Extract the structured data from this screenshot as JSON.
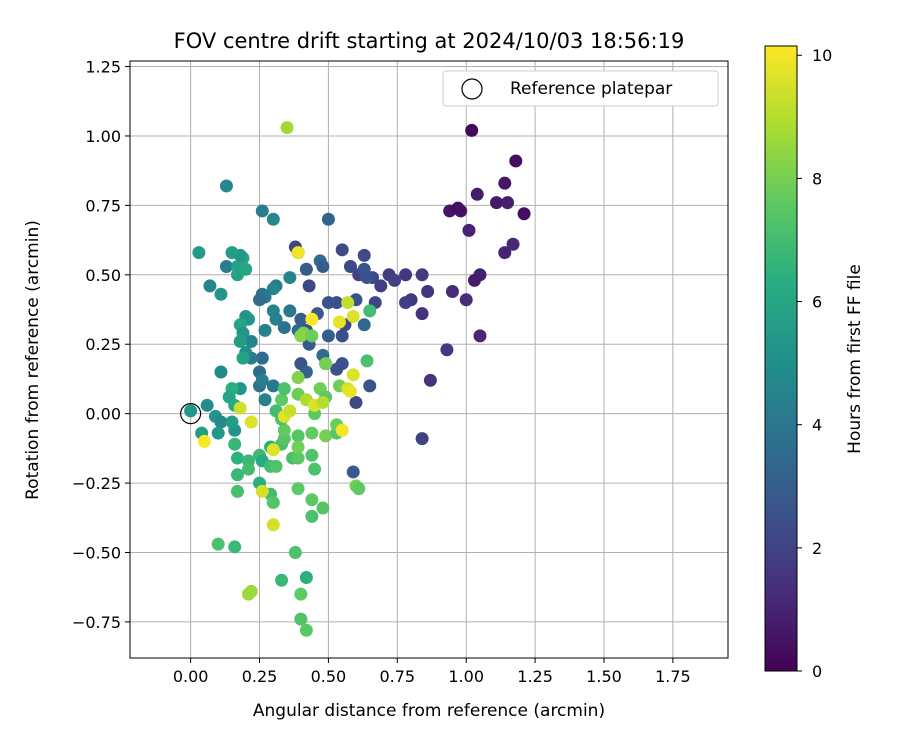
{
  "chart_data": {
    "type": "scatter",
    "title": "FOV centre drift starting at 2024/10/03 18:56:19",
    "xlabel": "Angular distance from reference (arcmin)",
    "ylabel": "Rotation from reference (arcmin)",
    "xlim": [
      -0.22,
      1.95
    ],
    "ylim": [
      -0.88,
      1.27
    ],
    "xticks": [
      "0.00",
      "0.25",
      "0.50",
      "0.75",
      "1.00",
      "1.25",
      "1.50",
      "1.75"
    ],
    "yticks": [
      "-0.75",
      "-0.50",
      "-0.25",
      "0.00",
      "0.25",
      "0.50",
      "0.75",
      "1.00",
      "1.25"
    ],
    "grid": true,
    "legend": {
      "placement": "top-right",
      "label": "Reference platepar"
    },
    "reference_point": {
      "x": 0.0,
      "y": 0.0
    },
    "colorbar": {
      "label": "Hours from first FF file",
      "range": [
        0,
        10.15
      ],
      "ticks": [
        "0",
        "2",
        "4",
        "6",
        "8",
        "10"
      ],
      "colormap": "viridis"
    },
    "series": [
      {
        "points": [
          {
            "x": 1.02,
            "y": 1.02,
            "c": 0.2
          },
          {
            "x": 1.18,
            "y": 0.91,
            "c": 0.4
          },
          {
            "x": 1.14,
            "y": 0.83,
            "c": 0.6
          },
          {
            "x": 1.21,
            "y": 0.72,
            "c": 0.4
          },
          {
            "x": 1.04,
            "y": 0.79,
            "c": 0.8
          },
          {
            "x": 1.11,
            "y": 0.76,
            "c": 0.7
          },
          {
            "x": 1.15,
            "y": 0.76,
            "c": 0.9
          },
          {
            "x": 0.94,
            "y": 0.73,
            "c": 0.6
          },
          {
            "x": 0.97,
            "y": 0.74,
            "c": 0.3
          },
          {
            "x": 0.98,
            "y": 0.73,
            "c": 0.5
          },
          {
            "x": 1.01,
            "y": 0.66,
            "c": 1.0
          },
          {
            "x": 1.17,
            "y": 0.61,
            "c": 1.1
          },
          {
            "x": 1.14,
            "y": 0.58,
            "c": 1.0
          },
          {
            "x": 1.05,
            "y": 0.5,
            "c": 0.9
          },
          {
            "x": 1.03,
            "y": 0.48,
            "c": 0.8
          },
          {
            "x": 0.95,
            "y": 0.44,
            "c": 1.2
          },
          {
            "x": 1.0,
            "y": 0.41,
            "c": 1.3
          },
          {
            "x": 1.05,
            "y": 0.28,
            "c": 1.1
          },
          {
            "x": 0.93,
            "y": 0.23,
            "c": 1.6
          },
          {
            "x": 0.87,
            "y": 0.12,
            "c": 1.4
          },
          {
            "x": 0.84,
            "y": -0.09,
            "c": 2.0
          },
          {
            "x": 0.84,
            "y": 0.5,
            "c": 1.7
          },
          {
            "x": 0.86,
            "y": 0.44,
            "c": 1.5
          },
          {
            "x": 0.84,
            "y": 0.36,
            "c": 1.4
          },
          {
            "x": 0.8,
            "y": 0.41,
            "c": 1.6
          },
          {
            "x": 0.78,
            "y": 0.4,
            "c": 1.9
          },
          {
            "x": 0.78,
            "y": 0.5,
            "c": 1.6
          },
          {
            "x": 0.72,
            "y": 0.5,
            "c": 1.8
          },
          {
            "x": 0.74,
            "y": 0.48,
            "c": 2.0
          },
          {
            "x": 0.69,
            "y": 0.46,
            "c": 1.9
          },
          {
            "x": 0.67,
            "y": 0.4,
            "c": 2.1
          },
          {
            "x": 0.66,
            "y": 0.49,
            "c": 2.2
          },
          {
            "x": 0.61,
            "y": 0.5,
            "c": 2.0
          },
          {
            "x": 0.58,
            "y": 0.53,
            "c": 2.2
          },
          {
            "x": 0.63,
            "y": 0.57,
            "c": 2.3
          },
          {
            "x": 0.55,
            "y": 0.59,
            "c": 2.3
          },
          {
            "x": 0.63,
            "y": 0.52,
            "c": 2.7
          },
          {
            "x": 0.64,
            "y": 0.49,
            "c": 2.5
          },
          {
            "x": 0.6,
            "y": 0.41,
            "c": 2.6
          },
          {
            "x": 0.53,
            "y": 0.4,
            "c": 2.4
          },
          {
            "x": 0.5,
            "y": 0.4,
            "c": 2.6
          },
          {
            "x": 0.46,
            "y": 0.36,
            "c": 2.8
          },
          {
            "x": 0.5,
            "y": 0.28,
            "c": 3.0
          },
          {
            "x": 0.55,
            "y": 0.28,
            "c": 2.4
          },
          {
            "x": 0.56,
            "y": 0.32,
            "c": 2.2
          },
          {
            "x": 0.63,
            "y": 0.32,
            "c": 3.4
          },
          {
            "x": 0.65,
            "y": 0.1,
            "c": 2.6
          },
          {
            "x": 0.6,
            "y": 0.04,
            "c": 2.2
          },
          {
            "x": 0.59,
            "y": -0.21,
            "c": 2.8
          },
          {
            "x": 0.55,
            "y": 0.18,
            "c": 2.5
          },
          {
            "x": 0.53,
            "y": 0.16,
            "c": 2.6
          },
          {
            "x": 0.5,
            "y": 0.7,
            "c": 3.3
          },
          {
            "x": 0.47,
            "y": 0.55,
            "c": 3.6
          },
          {
            "x": 0.48,
            "y": 0.53,
            "c": 3.0
          },
          {
            "x": 0.42,
            "y": 0.52,
            "c": 2.9
          },
          {
            "x": 0.38,
            "y": 0.6,
            "c": 2.1
          },
          {
            "x": 0.39,
            "y": 0.58,
            "c": 2.4
          },
          {
            "x": 0.43,
            "y": 0.46,
            "c": 2.2
          },
          {
            "x": 0.4,
            "y": 0.34,
            "c": 3.0
          },
          {
            "x": 0.42,
            "y": 0.3,
            "c": 2.6
          },
          {
            "x": 0.43,
            "y": 0.25,
            "c": 2.8
          },
          {
            "x": 0.39,
            "y": 0.3,
            "c": 3.4
          },
          {
            "x": 0.4,
            "y": 0.18,
            "c": 2.6
          },
          {
            "x": 0.42,
            "y": 0.15,
            "c": 3.2
          },
          {
            "x": 0.48,
            "y": 0.21,
            "c": 3.6
          },
          {
            "x": 0.49,
            "y": 0.18,
            "c": 3.0
          },
          {
            "x": 0.36,
            "y": 0.49,
            "c": 4.5
          },
          {
            "x": 0.31,
            "y": 0.46,
            "c": 4.3
          },
          {
            "x": 0.3,
            "y": 0.45,
            "c": 4.6
          },
          {
            "x": 0.26,
            "y": 0.73,
            "c": 4.2
          },
          {
            "x": 0.3,
            "y": 0.7,
            "c": 4.7
          },
          {
            "x": 0.26,
            "y": 0.43,
            "c": 3.8
          },
          {
            "x": 0.27,
            "y": 0.42,
            "c": 4.1
          },
          {
            "x": 0.25,
            "y": 0.41,
            "c": 3.6
          },
          {
            "x": 0.3,
            "y": 0.37,
            "c": 4.6
          },
          {
            "x": 0.36,
            "y": 0.37,
            "c": 4.0
          },
          {
            "x": 0.34,
            "y": 0.31,
            "c": 3.8
          },
          {
            "x": 0.31,
            "y": 0.34,
            "c": 4.4
          },
          {
            "x": 0.27,
            "y": 0.3,
            "c": 4.5
          },
          {
            "x": 0.26,
            "y": 0.2,
            "c": 3.6
          },
          {
            "x": 0.25,
            "y": 0.15,
            "c": 3.5
          },
          {
            "x": 0.25,
            "y": 0.1,
            "c": 3.8
          },
          {
            "x": 0.26,
            "y": 0.12,
            "c": 4.2
          },
          {
            "x": 0.3,
            "y": 0.1,
            "c": 4.1
          },
          {
            "x": 0.27,
            "y": 0.05,
            "c": 4.4
          },
          {
            "x": 0.22,
            "y": 0.26,
            "c": 4.6
          },
          {
            "x": 0.22,
            "y": 0.2,
            "c": 4.2
          },
          {
            "x": 0.13,
            "y": 0.82,
            "c": 4.7
          },
          {
            "x": 0.13,
            "y": 0.53,
            "c": 4.2
          },
          {
            "x": 0.07,
            "y": 0.46,
            "c": 4.6
          },
          {
            "x": 0.11,
            "y": 0.43,
            "c": 5.4
          },
          {
            "x": 0.17,
            "y": 0.53,
            "c": 5.8
          },
          {
            "x": 0.19,
            "y": 0.56,
            "c": 5.9
          },
          {
            "x": 0.18,
            "y": 0.57,
            "c": 5.4
          },
          {
            "x": 0.15,
            "y": 0.58,
            "c": 5.6
          },
          {
            "x": 0.03,
            "y": 0.58,
            "c": 5.5
          },
          {
            "x": 0.17,
            "y": 0.5,
            "c": 5.8
          },
          {
            "x": 0.2,
            "y": 0.52,
            "c": 6.0
          },
          {
            "x": 0.2,
            "y": 0.35,
            "c": 5.2
          },
          {
            "x": 0.21,
            "y": 0.34,
            "c": 5.3
          },
          {
            "x": 0.18,
            "y": 0.32,
            "c": 5.9
          },
          {
            "x": 0.19,
            "y": 0.29,
            "c": 5.2
          },
          {
            "x": 0.18,
            "y": 0.26,
            "c": 5.6
          },
          {
            "x": 0.2,
            "y": 0.22,
            "c": 5.0
          },
          {
            "x": 0.19,
            "y": 0.2,
            "c": 5.8
          },
          {
            "x": 0.11,
            "y": 0.15,
            "c": 4.8
          },
          {
            "x": 0.18,
            "y": 0.09,
            "c": 5.3
          },
          {
            "x": 0.15,
            "y": 0.09,
            "c": 6.4
          },
          {
            "x": 0.14,
            "y": 0.06,
            "c": 5.9
          },
          {
            "x": 0.16,
            "y": 0.03,
            "c": 6.2
          },
          {
            "x": 0.06,
            "y": 0.03,
            "c": 4.9
          },
          {
            "x": 0.09,
            "y": -0.01,
            "c": 5.2
          },
          {
            "x": 0.11,
            "y": -0.03,
            "c": 4.8
          },
          {
            "x": 0.0,
            "y": 0.01,
            "c": 5.3
          },
          {
            "x": 0.04,
            "y": -0.07,
            "c": 5.6
          },
          {
            "x": 0.1,
            "y": -0.07,
            "c": 5.4
          },
          {
            "x": 0.16,
            "y": -0.06,
            "c": 5.2
          },
          {
            "x": 0.15,
            "y": -0.03,
            "c": 5.6
          },
          {
            "x": 0.16,
            "y": -0.11,
            "c": 6.7
          },
          {
            "x": 0.17,
            "y": -0.16,
            "c": 6.5
          },
          {
            "x": 0.21,
            "y": -0.17,
            "c": 6.8
          },
          {
            "x": 0.17,
            "y": -0.22,
            "c": 6.8
          },
          {
            "x": 0.21,
            "y": -0.2,
            "c": 7.0
          },
          {
            "x": 0.17,
            "y": -0.28,
            "c": 7.1
          },
          {
            "x": 0.25,
            "y": -0.15,
            "c": 6.9
          },
          {
            "x": 0.29,
            "y": -0.12,
            "c": 6.4
          },
          {
            "x": 0.26,
            "y": -0.17,
            "c": 6.2
          },
          {
            "x": 0.29,
            "y": -0.19,
            "c": 7.0
          },
          {
            "x": 0.31,
            "y": -0.19,
            "c": 7.3
          },
          {
            "x": 0.29,
            "y": -0.29,
            "c": 7.0
          },
          {
            "x": 0.3,
            "y": -0.32,
            "c": 7.4
          },
          {
            "x": 0.25,
            "y": -0.25,
            "c": 6.4
          },
          {
            "x": 0.1,
            "y": -0.47,
            "c": 7.2
          },
          {
            "x": 0.16,
            "y": -0.48,
            "c": 6.8
          },
          {
            "x": 0.22,
            "y": -0.64,
            "c": 8.6
          },
          {
            "x": 0.33,
            "y": -0.6,
            "c": 6.8
          },
          {
            "x": 0.38,
            "y": -0.5,
            "c": 7.2
          },
          {
            "x": 0.42,
            "y": -0.59,
            "c": 6.4
          },
          {
            "x": 0.4,
            "y": -0.65,
            "c": 7.6
          },
          {
            "x": 0.4,
            "y": -0.74,
            "c": 7.3
          },
          {
            "x": 0.42,
            "y": -0.78,
            "c": 7.5
          },
          {
            "x": 0.39,
            "y": -0.27,
            "c": 7.6
          },
          {
            "x": 0.44,
            "y": -0.37,
            "c": 7.2
          },
          {
            "x": 0.44,
            "y": -0.31,
            "c": 7.6
          },
          {
            "x": 0.48,
            "y": -0.34,
            "c": 7.4
          },
          {
            "x": 0.45,
            "y": -0.2,
            "c": 7.2
          },
          {
            "x": 0.44,
            "y": -0.15,
            "c": 7.3
          },
          {
            "x": 0.37,
            "y": -0.16,
            "c": 7.1
          },
          {
            "x": 0.39,
            "y": -0.16,
            "c": 7.5
          },
          {
            "x": 0.33,
            "y": -0.11,
            "c": 7.1
          },
          {
            "x": 0.34,
            "y": -0.09,
            "c": 7.4
          },
          {
            "x": 0.34,
            "y": -0.06,
            "c": 7.7
          },
          {
            "x": 0.33,
            "y": -0.02,
            "c": 7.2
          },
          {
            "x": 0.31,
            "y": 0.01,
            "c": 7.0
          },
          {
            "x": 0.33,
            "y": 0.05,
            "c": 7.6
          },
          {
            "x": 0.34,
            "y": 0.09,
            "c": 7.2
          },
          {
            "x": 0.39,
            "y": 0.07,
            "c": 7.8
          },
          {
            "x": 0.39,
            "y": -0.08,
            "c": 7.4
          },
          {
            "x": 0.39,
            "y": -0.12,
            "c": 7.9
          },
          {
            "x": 0.44,
            "y": -0.07,
            "c": 7.7
          },
          {
            "x": 0.45,
            "y": 0.0,
            "c": 7.6
          },
          {
            "x": 0.47,
            "y": 0.09,
            "c": 7.9
          },
          {
            "x": 0.49,
            "y": 0.06,
            "c": 7.6
          },
          {
            "x": 0.49,
            "y": -0.08,
            "c": 8.0
          },
          {
            "x": 0.53,
            "y": -0.07,
            "c": 7.4
          },
          {
            "x": 0.53,
            "y": -0.04,
            "c": 7.8
          },
          {
            "x": 0.54,
            "y": 0.1,
            "c": 7.9
          },
          {
            "x": 0.6,
            "y": -0.26,
            "c": 8.0
          },
          {
            "x": 0.61,
            "y": -0.27,
            "c": 7.6
          },
          {
            "x": 0.64,
            "y": 0.19,
            "c": 7.2
          },
          {
            "x": 0.65,
            "y": 0.37,
            "c": 7.0
          },
          {
            "x": 0.49,
            "y": 0.18,
            "c": 8.0
          },
          {
            "x": 0.41,
            "y": 0.29,
            "c": 8.1
          },
          {
            "x": 0.4,
            "y": 0.28,
            "c": 8.3
          },
          {
            "x": 0.44,
            "y": 0.28,
            "c": 7.8
          },
          {
            "x": 0.39,
            "y": 0.13,
            "c": 8.2
          },
          {
            "x": 0.35,
            "y": 1.03,
            "c": 8.7
          },
          {
            "x": 0.21,
            "y": -0.65,
            "c": 8.6
          },
          {
            "x": 0.3,
            "y": -0.4,
            "c": 9.5
          },
          {
            "x": 0.26,
            "y": -0.28,
            "c": 9.5
          },
          {
            "x": 0.3,
            "y": -0.13,
            "c": 9.7
          },
          {
            "x": 0.22,
            "y": -0.03,
            "c": 9.6
          },
          {
            "x": 0.18,
            "y": 0.02,
            "c": 9.4
          },
          {
            "x": 0.34,
            "y": -0.01,
            "c": 9.7
          },
          {
            "x": 0.36,
            "y": 0.01,
            "c": 9.3
          },
          {
            "x": 0.42,
            "y": 0.05,
            "c": 8.9
          },
          {
            "x": 0.45,
            "y": 0.03,
            "c": 9.6
          },
          {
            "x": 0.48,
            "y": 0.04,
            "c": 9.0
          },
          {
            "x": 0.55,
            "y": -0.06,
            "c": 10.0
          },
          {
            "x": 0.57,
            "y": 0.09,
            "c": 9.5
          },
          {
            "x": 0.58,
            "y": 0.08,
            "c": 9.8
          },
          {
            "x": 0.59,
            "y": 0.14,
            "c": 9.6
          },
          {
            "x": 0.44,
            "y": 0.34,
            "c": 10.1
          },
          {
            "x": 0.54,
            "y": 0.33,
            "c": 9.8
          },
          {
            "x": 0.59,
            "y": 0.35,
            "c": 9.6
          },
          {
            "x": 0.57,
            "y": 0.4,
            "c": 9.2
          },
          {
            "x": 0.39,
            "y": 0.58,
            "c": 9.9
          },
          {
            "x": 0.05,
            "y": -0.1,
            "c": 10.1
          }
        ]
      }
    ]
  }
}
